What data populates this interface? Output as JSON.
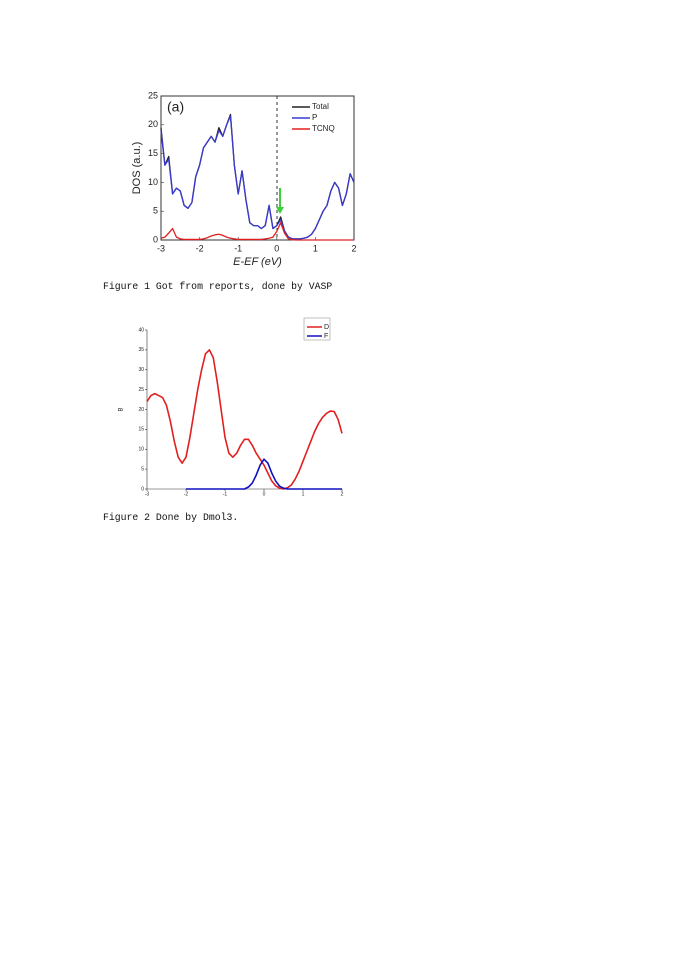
{
  "chart_data": [
    {
      "type": "line",
      "panel_label": "(a)",
      "y_label": "DOS (a.u.)",
      "x_label": "E-EF (eV)",
      "xlim": [
        -3,
        2
      ],
      "xticks": [
        -3,
        -2,
        -1,
        0,
        1,
        2
      ],
      "ylim": [
        0,
        25
      ],
      "yticks": [
        0,
        5,
        10,
        15,
        20,
        25
      ],
      "legend": "upper right",
      "x": [
        -3.0,
        -2.9,
        -2.8,
        -2.7,
        -2.6,
        -2.5,
        -2.4,
        -2.3,
        -2.2,
        -2.1,
        -2.0,
        -1.9,
        -1.8,
        -1.7,
        -1.6,
        -1.5,
        -1.4,
        -1.3,
        -1.2,
        -1.1,
        -1.0,
        -0.9,
        -0.8,
        -0.7,
        -0.6,
        -0.5,
        -0.4,
        -0.3,
        -0.2,
        -0.1,
        0.0,
        0.1,
        0.2,
        0.3,
        0.4,
        0.5,
        0.6,
        0.7,
        0.8,
        0.9,
        1.0,
        1.1,
        1.2,
        1.3,
        1.4,
        1.5,
        1.6,
        1.7,
        1.8,
        1.9,
        2.0
      ],
      "series": [
        {
          "name": "Total",
          "color": "#222222",
          "values": [
            19.5,
            13,
            14.5,
            8,
            9,
            8.5,
            6,
            5.5,
            6.5,
            11,
            13,
            16,
            17,
            18,
            17,
            19.5,
            18,
            20,
            21.8,
            13,
            8,
            12,
            7,
            3,
            2.5,
            2.5,
            2,
            2.5,
            6,
            2,
            2.5,
            4,
            1.6,
            0.5,
            0.2,
            0.2,
            0.2,
            0.3,
            0.5,
            1,
            2,
            3.5,
            5,
            6,
            8.5,
            10,
            9,
            6,
            8,
            11.5,
            10
          ]
        },
        {
          "name": "P",
          "color": "#3a3ad0",
          "values": [
            19,
            13,
            14,
            8,
            9,
            8.5,
            6,
            5.5,
            6.5,
            11,
            13,
            16,
            17,
            18,
            17,
            19,
            18,
            20,
            21.5,
            13,
            8,
            12,
            7,
            3,
            2.5,
            2.5,
            2,
            2.5,
            6,
            2,
            2.5,
            3.5,
            1.5,
            0.5,
            0.2,
            0.2,
            0.2,
            0.3,
            0.5,
            1,
            2,
            3.5,
            5,
            6,
            8.5,
            10,
            9,
            6,
            8,
            11.5,
            10
          ]
        },
        {
          "name": "TCNQ",
          "color": "#e02020",
          "values": [
            0.3,
            0.5,
            1.2,
            2,
            0.5,
            0.2,
            0.1,
            0.1,
            0.1,
            0.1,
            0.1,
            0.2,
            0.4,
            0.7,
            0.9,
            1,
            0.8,
            0.5,
            0.3,
            0.2,
            0.1,
            0.1,
            0.1,
            0.1,
            0.1,
            0.1,
            0.1,
            0.2,
            0.3,
            0.5,
            1.5,
            3,
            1.2,
            0.2,
            0.05,
            0,
            0,
            0,
            0,
            0,
            0,
            0,
            0,
            0,
            0,
            0,
            0,
            0,
            0,
            0,
            0
          ]
        }
      ]
    },
    {
      "type": "line",
      "y_label": "B",
      "xlim": [
        -3,
        2
      ],
      "xticks": [
        -3,
        -2,
        -1,
        0,
        1,
        2
      ],
      "ylim": [
        0,
        40
      ],
      "yticks": [
        0,
        5,
        10,
        15,
        20,
        25,
        30,
        35,
        40
      ],
      "legend": "upper right",
      "x": [
        -3.0,
        -2.9,
        -2.8,
        -2.7,
        -2.6,
        -2.5,
        -2.4,
        -2.3,
        -2.2,
        -2.1,
        -2.0,
        -1.9,
        -1.8,
        -1.7,
        -1.6,
        -1.5,
        -1.4,
        -1.3,
        -1.2,
        -1.1,
        -1.0,
        -0.9,
        -0.8,
        -0.7,
        -0.6,
        -0.5,
        -0.4,
        -0.3,
        -0.2,
        -0.1,
        0.0,
        0.1,
        0.2,
        0.3,
        0.4,
        0.5,
        0.6,
        0.7,
        0.8,
        0.9,
        1.0,
        1.1,
        1.2,
        1.3,
        1.4,
        1.5,
        1.6,
        1.7,
        1.8,
        1.9,
        2.0
      ],
      "series": [
        {
          "name": "D",
          "color": "#e02020",
          "values": [
            22,
            23.5,
            24,
            23.5,
            23,
            21,
            17,
            12,
            8,
            6.5,
            8,
            13,
            19,
            25,
            30,
            34,
            35,
            33,
            27,
            20,
            13,
            9,
            8,
            9,
            11,
            12.5,
            12.5,
            11,
            9,
            7.5,
            6,
            4,
            2,
            0.8,
            0.2,
            0,
            0.3,
            1,
            2.5,
            4.5,
            7,
            9.5,
            12,
            14.5,
            16.5,
            18,
            19,
            19.6,
            19.5,
            17.5,
            14
          ]
        },
        {
          "name": "F",
          "color": "#1010c0",
          "values": [
            null,
            null,
            null,
            null,
            null,
            null,
            null,
            null,
            null,
            null,
            0,
            0,
            0,
            0,
            0,
            0,
            0,
            0,
            0,
            0,
            0,
            0,
            0,
            0,
            0,
            0,
            0.5,
            1.5,
            3.5,
            6,
            7.5,
            6.5,
            4,
            2,
            0.7,
            0.2,
            0,
            0,
            0,
            0,
            0,
            0,
            0,
            0,
            0,
            0,
            0,
            0,
            0,
            0,
            0
          ]
        }
      ]
    }
  ],
  "captions": [
    "Figure 1 Got from reports, done by VASP",
    "Figure 2 Done by Dmol3."
  ]
}
